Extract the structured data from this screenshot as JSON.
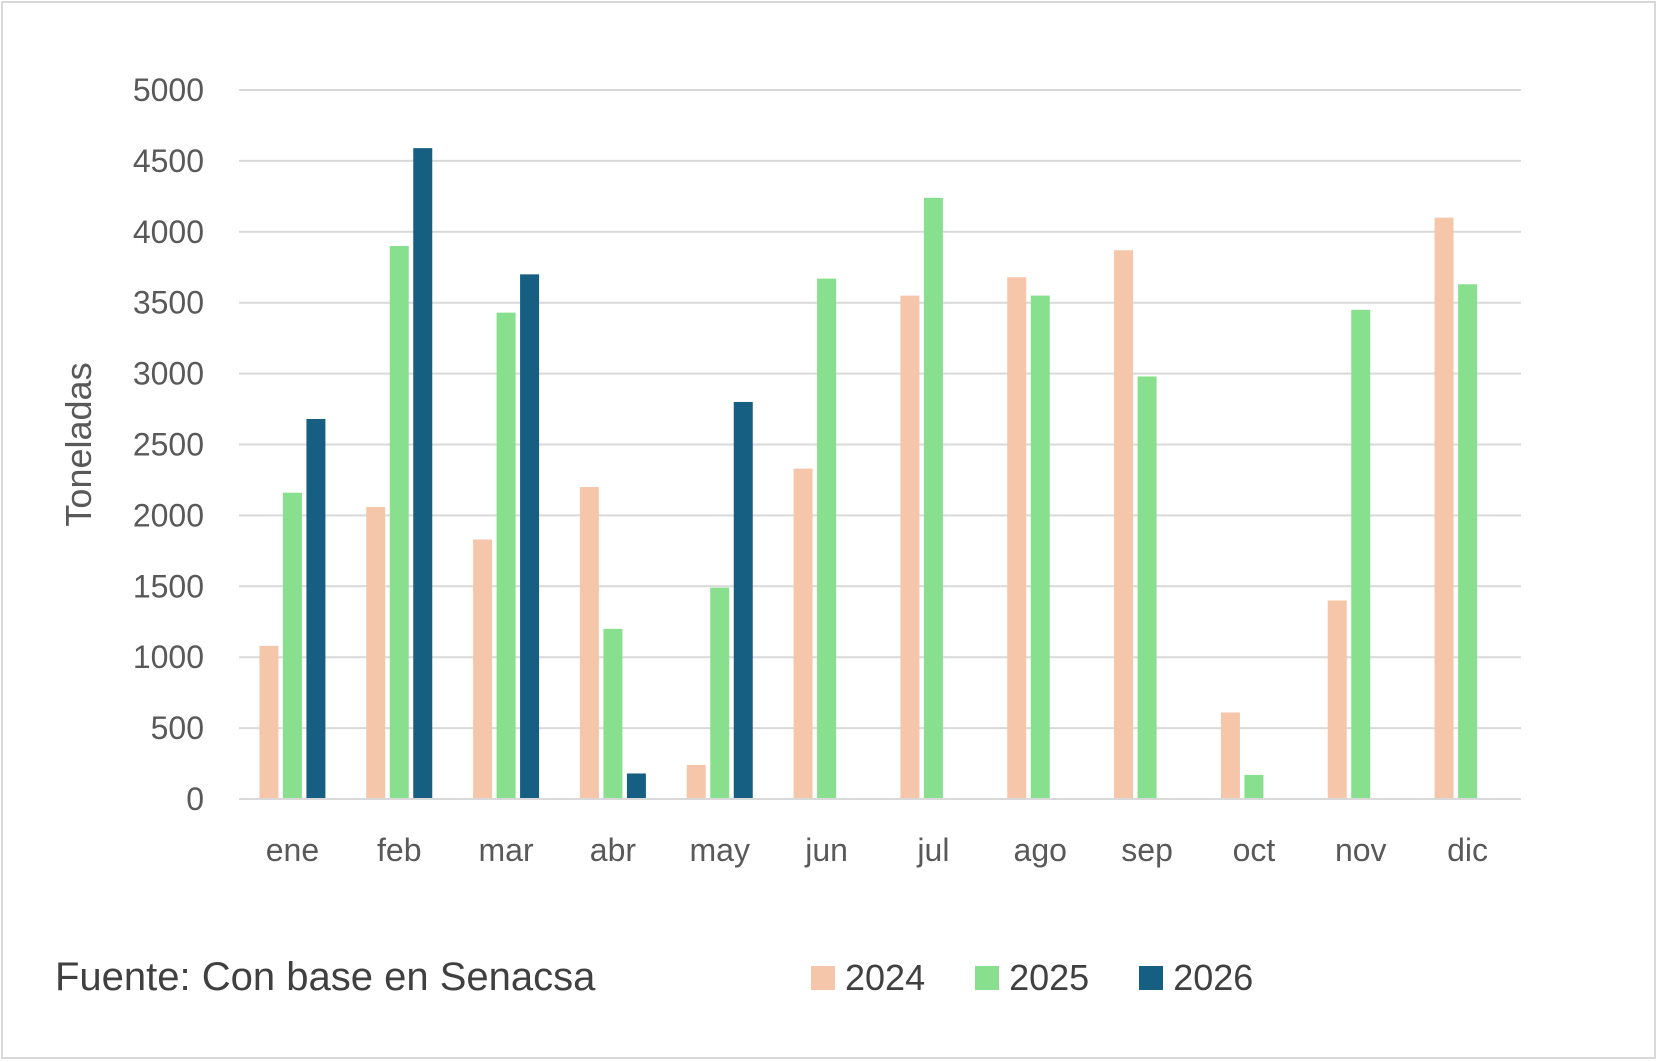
{
  "chart_data": {
    "type": "bar",
    "categories": [
      "ene",
      "feb",
      "mar",
      "abr",
      "may",
      "jun",
      "jul",
      "ago",
      "sep",
      "oct",
      "nov",
      "dic"
    ],
    "series": [
      {
        "name": "2024",
        "color": "#f5c6aa",
        "values": [
          1080,
          2060,
          1830,
          2200,
          240,
          2330,
          3550,
          3680,
          3870,
          610,
          1400,
          4100
        ]
      },
      {
        "name": "2025",
        "color": "#88e08e",
        "values": [
          2160,
          3900,
          3430,
          1200,
          1490,
          3670,
          4240,
          3550,
          2980,
          170,
          3450,
          3630
        ]
      },
      {
        "name": "2026",
        "color": "#165e82",
        "values": [
          2680,
          4590,
          3700,
          180,
          2800,
          null,
          null,
          null,
          null,
          null,
          null,
          null
        ]
      }
    ],
    "y_ticks": [
      "0",
      "500",
      "1000",
      "1500",
      "2000",
      "2500",
      "3000",
      "3500",
      "4000",
      "4500",
      "5000"
    ],
    "ylim": [
      0,
      5000
    ],
    "ylabel": "Toneladas",
    "xlabel": "",
    "grid": true,
    "legend_position": "bottom"
  },
  "source_note": "Fuente: Con base en Senacsa"
}
